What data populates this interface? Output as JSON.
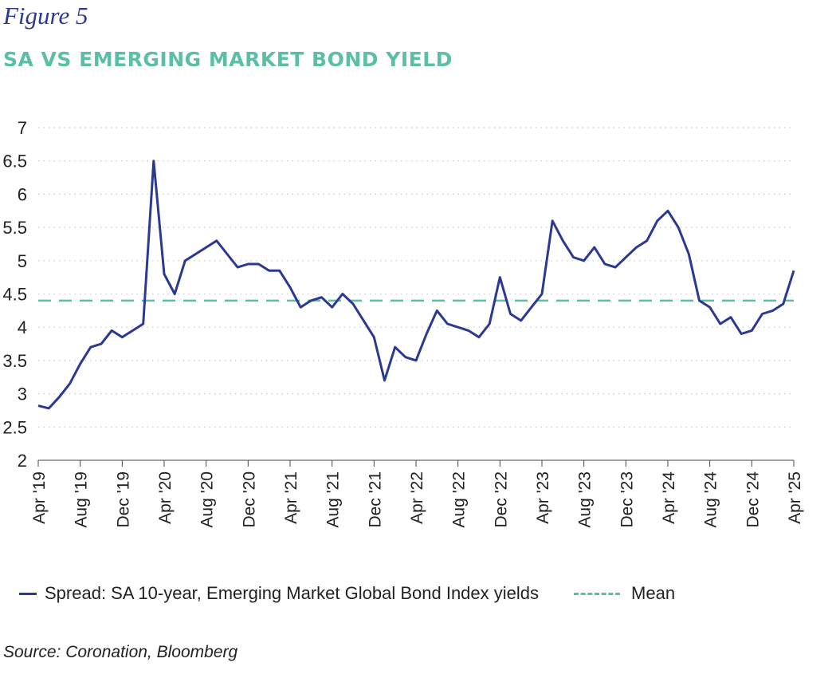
{
  "figure_label": "Figure 5",
  "title": "SA VS EMERGING MARKET BOND YIELD",
  "source": "Source: Coronation, Bloomberg",
  "colors": {
    "series": "#2b3990",
    "mean": "#5bbfa8",
    "title": "#5bbfa8",
    "grid": "#c8c8c8"
  },
  "chart_data": {
    "type": "line",
    "title": "SA VS EMERGING MARKET BOND YIELD",
    "xlabel": "",
    "ylabel": "",
    "ylim": [
      2,
      7
    ],
    "yticks": [
      7,
      6.5,
      6,
      5.5,
      5,
      4.5,
      4,
      3.5,
      3,
      2.5,
      2
    ],
    "x_ticks": [
      "Apr '19",
      "Aug '19",
      "Dec '19",
      "Apr '20",
      "Aug '20",
      "Dec '20",
      "Apr '21",
      "Aug '21",
      "Dec '21",
      "Apr '22",
      "Aug '22",
      "Dec '22",
      "Apr '23",
      "Aug '23",
      "Dec '23",
      "Apr '24",
      "Aug '24",
      "Dec '24",
      "Apr '25"
    ],
    "grid": "horizontal dotted",
    "legend_position": "bottom",
    "mean": 4.4,
    "series": [
      {
        "name": "Spread: SA 10-year, Emerging Market Global Bond Index yields",
        "x": [
          "2019-04",
          "2019-05",
          "2019-06",
          "2019-07",
          "2019-08",
          "2019-09",
          "2019-10",
          "2019-11",
          "2019-12",
          "2020-01",
          "2020-02",
          "2020-03",
          "2020-04",
          "2020-05",
          "2020-06",
          "2020-07",
          "2020-08",
          "2020-09",
          "2020-10",
          "2020-11",
          "2020-12",
          "2021-01",
          "2021-02",
          "2021-03",
          "2021-04",
          "2021-05",
          "2021-06",
          "2021-07",
          "2021-08",
          "2021-09",
          "2021-10",
          "2021-11",
          "2021-12",
          "2022-01",
          "2022-02",
          "2022-03",
          "2022-04",
          "2022-05",
          "2022-06",
          "2022-07",
          "2022-08",
          "2022-09",
          "2022-10",
          "2022-11",
          "2022-12",
          "2023-01",
          "2023-02",
          "2023-03",
          "2023-04",
          "2023-05",
          "2023-06",
          "2023-07",
          "2023-08",
          "2023-09",
          "2023-10",
          "2023-11",
          "2023-12",
          "2024-01",
          "2024-02",
          "2024-03",
          "2024-04",
          "2024-05",
          "2024-06",
          "2024-07",
          "2024-08",
          "2024-09",
          "2024-10",
          "2024-11",
          "2024-12",
          "2025-01",
          "2025-02",
          "2025-03",
          "2025-04"
        ],
        "values": [
          2.82,
          2.78,
          2.95,
          3.15,
          3.45,
          3.7,
          3.75,
          3.95,
          3.85,
          3.95,
          4.05,
          6.5,
          4.8,
          4.5,
          5.0,
          5.1,
          5.2,
          5.3,
          5.1,
          4.9,
          4.95,
          4.95,
          4.85,
          4.85,
          4.6,
          4.3,
          4.4,
          4.45,
          4.3,
          4.5,
          4.35,
          4.1,
          3.85,
          3.2,
          3.7,
          3.55,
          3.5,
          3.9,
          4.25,
          4.05,
          4.0,
          3.95,
          3.85,
          4.05,
          4.75,
          4.2,
          4.1,
          4.3,
          4.5,
          5.6,
          5.3,
          5.05,
          5.0,
          5.2,
          4.95,
          4.9,
          5.05,
          5.2,
          5.3,
          5.6,
          5.75,
          5.5,
          5.1,
          4.4,
          4.3,
          4.05,
          4.15,
          3.9,
          3.95,
          4.2,
          4.25,
          4.35,
          4.85
        ]
      },
      {
        "name": "Mean",
        "value": 4.4
      }
    ]
  }
}
